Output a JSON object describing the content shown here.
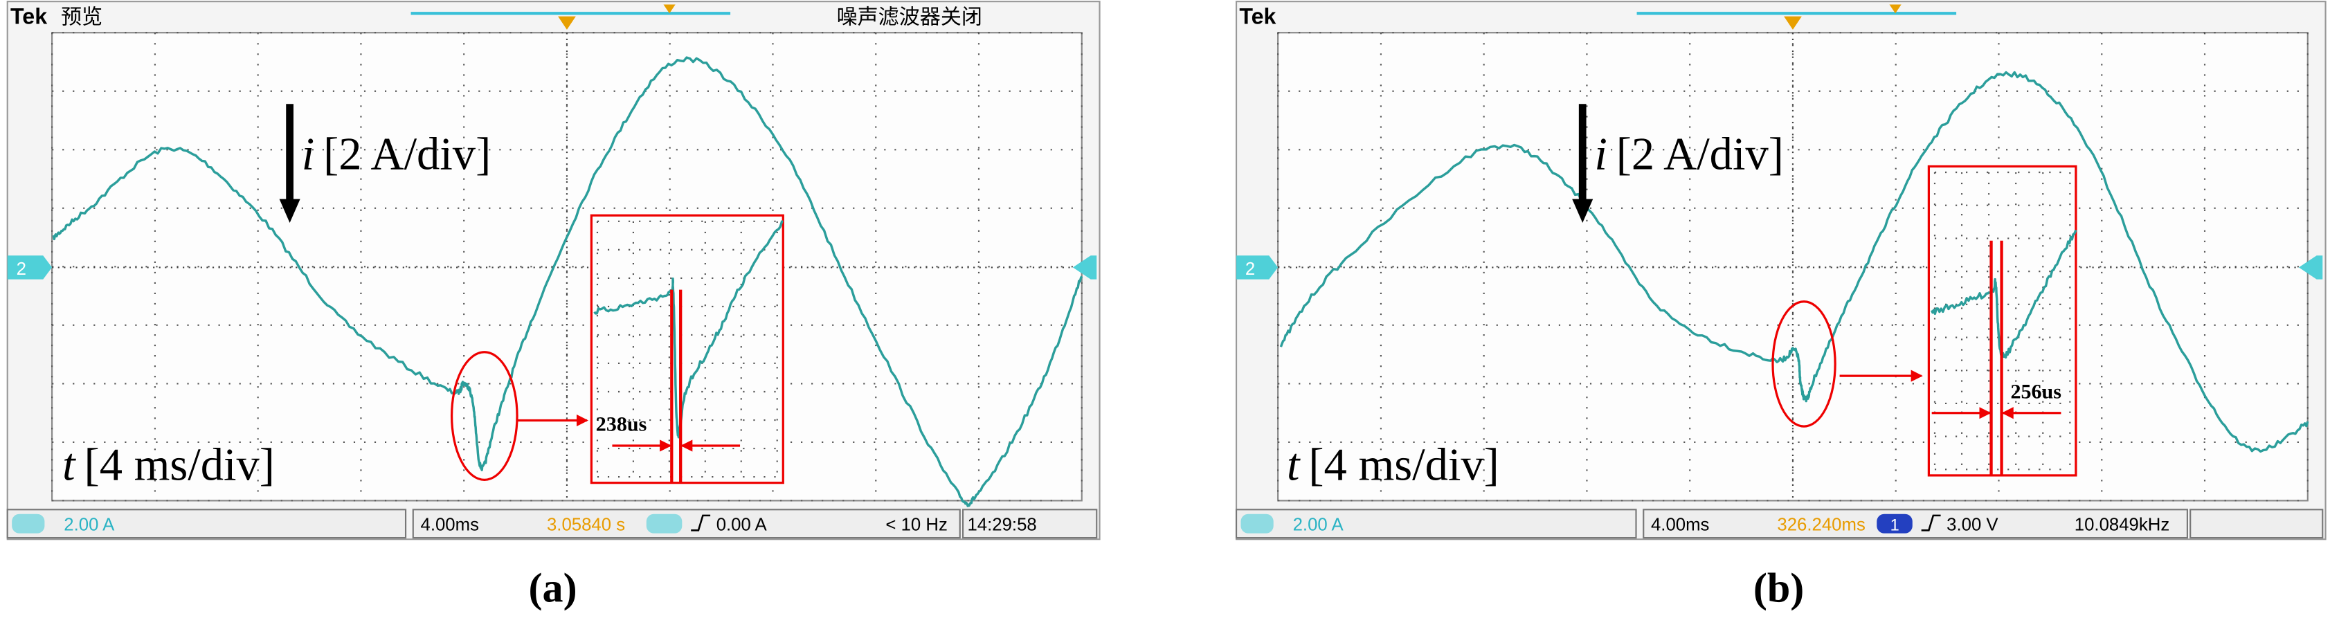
{
  "panels": [
    {
      "caption": "(a)",
      "header": {
        "brand": "Tek",
        "mode": "预览",
        "filter": "噪声滤波器关闭"
      },
      "channel_marker": "2",
      "current_label": {
        "symbol": "i",
        "scale": "[2 A/div]"
      },
      "time_label": {
        "symbol": "t",
        "scale": "[4 ms/div]"
      },
      "delay_label": "238us",
      "status_bar": {
        "channel": "2.00 A",
        "timebase": "4.00ms",
        "position": "3.05840 s",
        "trigger_level": "0.00 A",
        "frequency": "< 10 Hz",
        "clock": "14:29:58"
      }
    },
    {
      "caption": "(b)",
      "header": {
        "brand": "Tek"
      },
      "channel_marker": "2",
      "current_label": {
        "symbol": "i",
        "scale": "[2 A/div]"
      },
      "time_label": {
        "symbol": "t",
        "scale": "[4 ms/div]"
      },
      "delay_label": "256us",
      "status_bar": {
        "channel": "2.00 A",
        "timebase": "4.00ms",
        "position": "326.240ms",
        "trigger_source": "1",
        "trigger_level": "3.00 V",
        "frequency": "10.0849kHz"
      }
    }
  ]
}
